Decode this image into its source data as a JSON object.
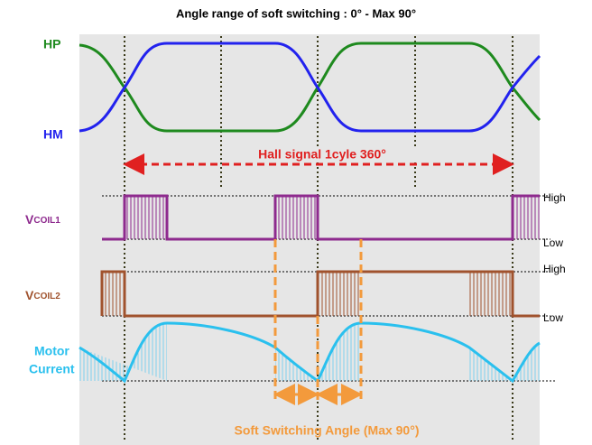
{
  "title": "Angle range of soft switching : 0° -    Max 90°",
  "signals": {
    "hp": "HP",
    "hm": "HM",
    "hall": "Hall signal   1cyle 360°",
    "vcoil1": {
      "main": "V",
      "sub": "COIL1",
      "high": "High",
      "low": "Low"
    },
    "vcoil2": {
      "main": "V",
      "sub": "COIL2",
      "high": "High",
      "low": "Low"
    },
    "current": [
      "Motor",
      "Current"
    ]
  },
  "footer": "Soft Switching Angle (Max 90°)"
}
